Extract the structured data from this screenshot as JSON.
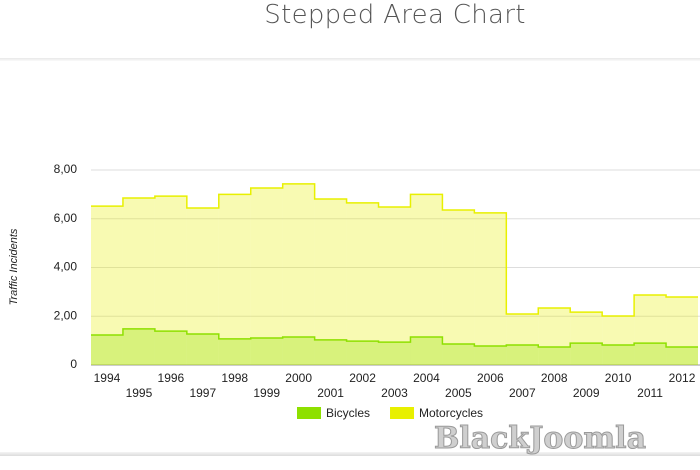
{
  "chart_data": {
    "type": "stepped-area",
    "title": "Stepped Area Chart",
    "y_label": "Traffic Incidents",
    "categories": [
      "1994",
      "1995",
      "1996",
      "1997",
      "1998",
      "1999",
      "2000",
      "2001",
      "2002",
      "2003",
      "2004",
      "2005",
      "2006",
      "2007",
      "2008",
      "2009",
      "2010",
      "2011",
      "2012"
    ],
    "series": [
      {
        "name": "Bicycles",
        "color": "#8ee000",
        "values": [
          1.23,
          1.48,
          1.39,
          1.27,
          1.07,
          1.11,
          1.15,
          1.03,
          0.98,
          0.94,
          1.15,
          0.86,
          0.78,
          0.82,
          0.74,
          0.9,
          0.82,
          0.9,
          0.74
        ]
      },
      {
        "name": "Motorcycles",
        "color": "#e8f000",
        "values": [
          6.52,
          6.85,
          6.93,
          6.44,
          7.0,
          7.26,
          7.43,
          6.81,
          6.65,
          6.48,
          7.0,
          6.36,
          6.24,
          2.09,
          2.34,
          2.17,
          2.01,
          2.87,
          2.79
        ]
      }
    ],
    "ylim": [
      0,
      8
    ],
    "yticks": [
      0,
      {
        "value": 2,
        "label": "2,00"
      },
      {
        "value": 4,
        "label": "4,00"
      },
      {
        "value": 6,
        "label": "6,00"
      },
      {
        "value": 8,
        "label": "8,00"
      }
    ],
    "grid": true,
    "legend": "bottom"
  },
  "watermark": "BlackJoomla"
}
